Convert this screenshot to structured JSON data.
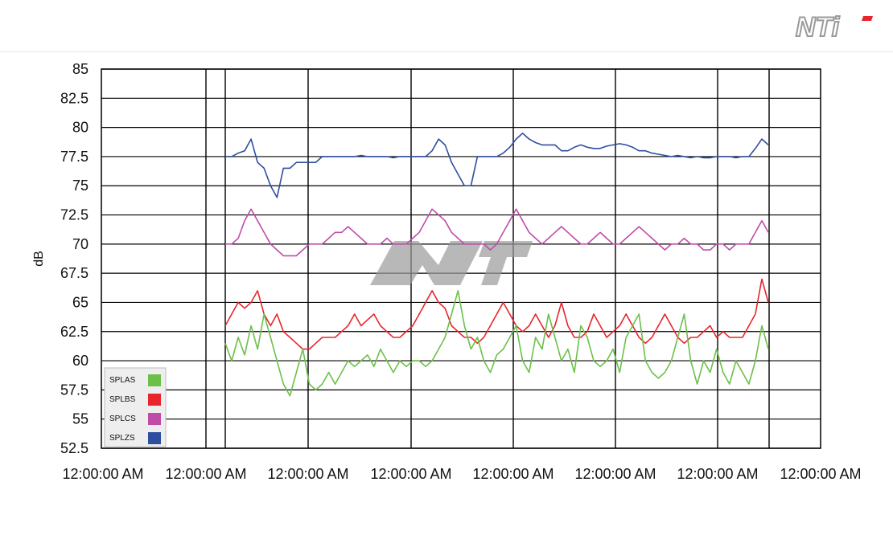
{
  "brand": {
    "logo_text": "NTi"
  },
  "chart_data": {
    "type": "line",
    "title": "",
    "ylabel": "dB",
    "xlabel": "",
    "ylim": [
      52.5,
      85
    ],
    "yticks": [
      85,
      82.5,
      80,
      77.5,
      75,
      72.5,
      70,
      67.5,
      65,
      62.5,
      60,
      57.5,
      55,
      52.5
    ],
    "xtick_labels": [
      "12:00:00 AM",
      "12:00:00 AM",
      "12:00:00 AM",
      "12:00:00 AM",
      "12:00:00 AM",
      "12:00:00 AM",
      "12:00:00 AM",
      "12:00:00 AM"
    ],
    "grid": true,
    "legend_position": "bottom-left",
    "x": [
      0,
      2,
      4,
      6,
      8,
      10,
      12,
      14,
      16,
      18,
      20,
      22,
      24,
      26,
      28,
      30,
      32,
      34,
      36,
      38,
      40,
      42,
      44,
      46,
      48,
      50,
      52,
      54,
      56,
      58,
      60,
      62,
      64,
      66,
      68,
      70,
      72,
      74,
      76,
      78,
      80,
      82,
      84,
      86,
      88,
      90,
      92,
      94,
      96,
      98,
      100,
      102,
      104,
      106,
      108,
      110,
      112,
      114,
      116,
      118,
      120,
      122,
      124,
      126,
      128,
      130,
      132,
      134,
      136,
      138,
      140,
      142,
      144,
      146,
      148,
      150,
      152,
      154,
      156,
      158,
      160,
      162,
      164,
      166,
      168
    ],
    "series": [
      {
        "name": "SPLAS",
        "color": "#6cc04a",
        "values": [
          61.5,
          60,
          62,
          60.5,
          63,
          61,
          64,
          62,
          60,
          58,
          57,
          59,
          61,
          58,
          57.5,
          58,
          59,
          58,
          59,
          60,
          59.5,
          60,
          60.5,
          59.5,
          61,
          60,
          59,
          60,
          59.5,
          60,
          60,
          59.5,
          60,
          61,
          62,
          64,
          66,
          63,
          61,
          62,
          60,
          59,
          60.5,
          61,
          62,
          63,
          60,
          59,
          62,
          61,
          64,
          62,
          60,
          61,
          59,
          63,
          62,
          60,
          59.5,
          60,
          61,
          59,
          62,
          63,
          64,
          60,
          59,
          58.5,
          59,
          60,
          62,
          64,
          60,
          58,
          60,
          59,
          61,
          59,
          58,
          60,
          59,
          58,
          60,
          63,
          61
        ]
      },
      {
        "name": "SPLBS",
        "color": "#e8252b",
        "values": [
          63,
          64,
          65,
          64.5,
          65,
          66,
          64,
          63,
          64,
          62.5,
          62,
          61.5,
          61,
          61,
          61.5,
          62,
          62,
          62,
          62.5,
          63,
          64,
          63,
          63.5,
          64,
          63,
          62.5,
          62,
          62,
          62.5,
          63,
          64,
          65,
          66,
          65,
          64.5,
          63,
          62.5,
          62,
          62,
          61.5,
          62,
          63,
          64,
          65,
          64,
          63,
          62.5,
          63,
          64,
          63,
          62,
          63,
          65,
          63,
          62,
          62,
          62.5,
          64,
          63,
          62,
          62.5,
          63,
          64,
          63,
          62,
          61.5,
          62,
          63,
          64,
          63,
          62,
          61.5,
          62,
          62,
          62.5,
          63,
          62,
          62.5,
          62,
          62,
          62,
          63,
          64,
          67,
          65
        ]
      },
      {
        "name": "SPLCS",
        "color": "#c04ca8",
        "values": [
          70,
          70,
          70.5,
          72,
          73,
          72,
          71,
          70,
          69.5,
          69,
          69,
          69,
          69.5,
          70,
          70,
          70,
          70.5,
          71,
          71,
          71.5,
          71,
          70.5,
          70,
          70,
          70,
          70.5,
          70,
          70,
          70,
          70.5,
          71,
          72,
          73,
          72.5,
          72,
          71,
          70.5,
          70,
          70,
          70,
          70,
          69.5,
          70,
          71,
          72,
          73,
          72,
          71,
          70.5,
          70,
          70.5,
          71,
          71.5,
          71,
          70.5,
          70,
          70,
          70.5,
          71,
          70.5,
          70,
          70,
          70.5,
          71,
          71.5,
          71,
          70.5,
          70,
          69.5,
          70,
          70,
          70.5,
          70,
          70,
          69.5,
          69.5,
          70,
          70,
          69.5,
          70,
          70,
          70,
          71,
          72,
          71
        ]
      },
      {
        "name": "SPLZS",
        "color": "#2e4ea0",
        "values": [
          77.5,
          77.5,
          77.8,
          78,
          79,
          77,
          76.5,
          75,
          74,
          76.5,
          76.5,
          77,
          77,
          77,
          77,
          77.5,
          77.5,
          77.5,
          77.5,
          77.5,
          77.5,
          77.6,
          77.5,
          77.5,
          77.5,
          77.5,
          77.4,
          77.5,
          77.5,
          77.5,
          77.5,
          77.5,
          78,
          79,
          78.5,
          77,
          76,
          75,
          75,
          77.5,
          77.5,
          77.5,
          77.5,
          77.8,
          78.3,
          79,
          79.5,
          79,
          78.7,
          78.5,
          78.5,
          78.5,
          78,
          78,
          78.3,
          78.5,
          78.3,
          78.2,
          78.2,
          78.4,
          78.5,
          78.6,
          78.5,
          78.3,
          78,
          78,
          77.8,
          77.7,
          77.6,
          77.5,
          77.6,
          77.5,
          77.4,
          77.5,
          77.4,
          77.4,
          77.5,
          77.5,
          77.5,
          77.4,
          77.5,
          77.5,
          78.2,
          79,
          78.5
        ]
      }
    ]
  }
}
